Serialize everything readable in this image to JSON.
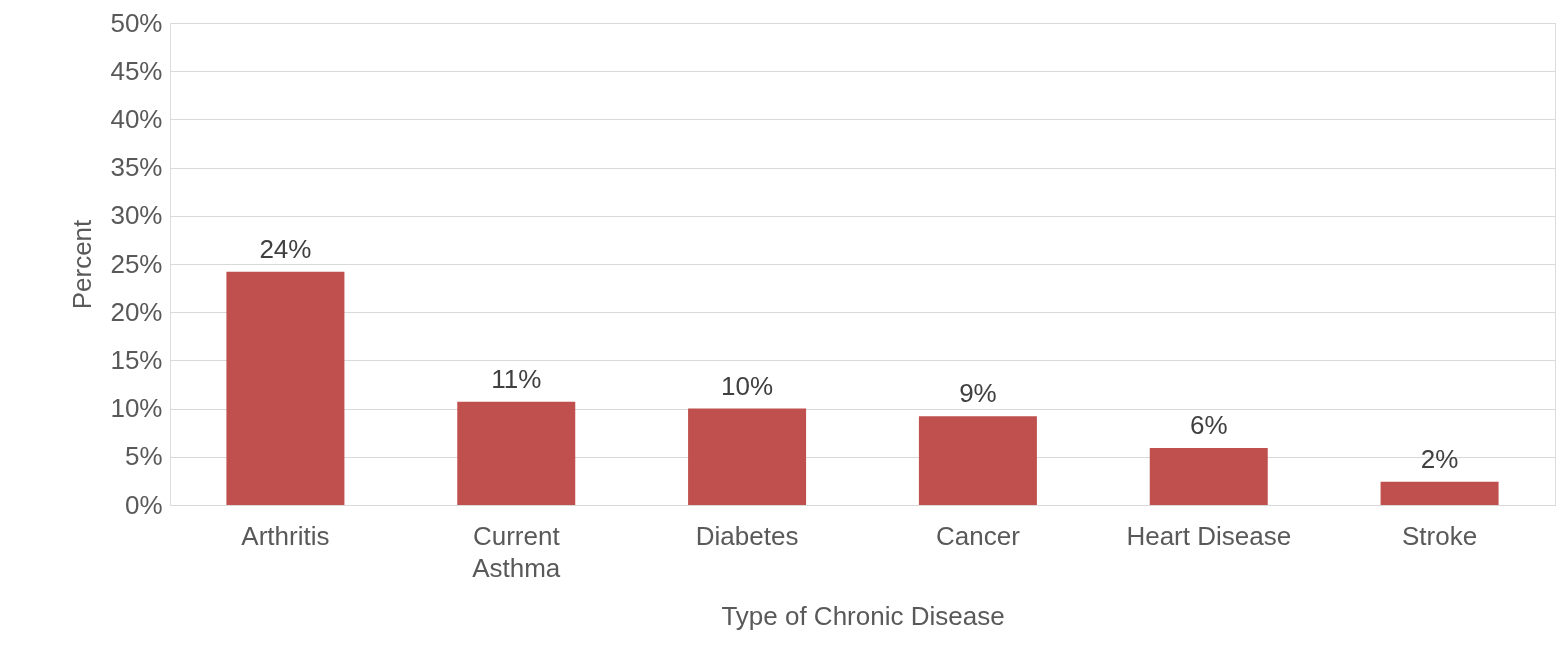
{
  "chart_data": {
    "type": "bar",
    "xlabel": "Type of Chronic Disease",
    "ylabel": "Percent",
    "categories": [
      "Arthritis",
      "Current Asthma",
      "Diabetes",
      "Cancer",
      "Heart Disease",
      "Stroke"
    ],
    "values": [
      24.2,
      10.7,
      10.0,
      9.2,
      5.9,
      2.4
    ],
    "value_labels": [
      "24%",
      "11%",
      "10%",
      "9%",
      "6%",
      "2%"
    ],
    "color": "#c0504d",
    "ylim": [
      0,
      50
    ],
    "yticks": [
      {
        "value": 0,
        "label": "0%"
      },
      {
        "value": 5,
        "label": "5%"
      },
      {
        "value": 10,
        "label": "10%"
      },
      {
        "value": 15,
        "label": "15%"
      },
      {
        "value": 20,
        "label": "20%"
      },
      {
        "value": 25,
        "label": "25%"
      },
      {
        "value": 30,
        "label": "30%"
      },
      {
        "value": 35,
        "label": "35%"
      },
      {
        "value": 40,
        "label": "40%"
      },
      {
        "value": 45,
        "label": "45%"
      },
      {
        "value": 50,
        "label": "50%"
      }
    ],
    "grid": "y"
  }
}
